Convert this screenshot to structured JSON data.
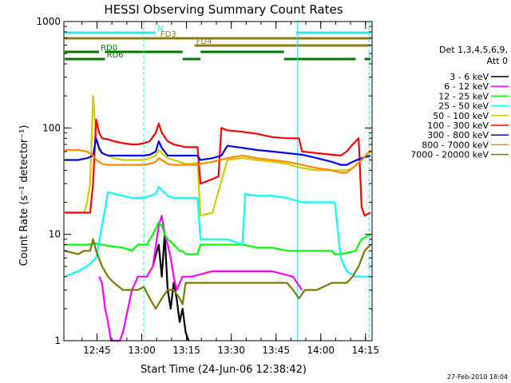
{
  "chart_data": {
    "type": "line",
    "title": "HESSI Observing Summary Count Rates",
    "xlabel": "Start Time (24-Jun-06 12:38:42)",
    "ylabel": "Count Rate (s⁻¹ detector⁻¹)",
    "y_scale": "log",
    "ylim": [
      1,
      1000
    ],
    "xlim_minutes": [
      -4.8,
      98.5
    ],
    "x_ticks": [
      "12:45",
      "13:00",
      "13:15",
      "13:30",
      "13:45",
      "14:00",
      "14:15"
    ],
    "y_ticks": [
      "1",
      "10",
      "100",
      "1000"
    ],
    "legend_header": [
      "Det 1,3,4,5,6,9,",
      "Att 0"
    ],
    "legend_placement": "right",
    "footer_date": "27-Feb-2010 18:04",
    "flag_bars": [
      {
        "label": "N",
        "color": "#33e5e5",
        "segments": [
          [
            -4.5,
            26
          ],
          [
            73,
            98
          ]
        ],
        "label_at": 26
      },
      {
        "label": "FD3",
        "color": "#8b7b15",
        "segments": [
          [
            -4.5,
            98
          ]
        ],
        "label_at": 27
      },
      {
        "label": "FD4",
        "color": "#8b7b15",
        "segments": [
          [
            39,
            98
          ]
        ],
        "label_at": 39
      },
      {
        "label": "RD0",
        "color": "#007700",
        "segments": [
          [
            -4.5,
            7
          ],
          [
            9,
            35
          ],
          [
            41,
            69
          ]
        ],
        "label_at": 7
      },
      {
        "label": "RD6",
        "color": "#007700",
        "segments": [
          [
            -4.5,
            9
          ],
          [
            35,
            41
          ],
          [
            69,
            93
          ],
          [
            96,
            98
          ]
        ],
        "label_at": 9
      }
    ],
    "vlines": [
      {
        "x": -4.8,
        "color": "#33e5e5",
        "style": "solid"
      },
      {
        "x": 22,
        "color": "#33e5e5",
        "style": "dashed"
      },
      {
        "x": 73.5,
        "color": "#33e5e5",
        "style": "solid"
      },
      {
        "x": 97.5,
        "color": "#33e5e5",
        "style": "dashed"
      }
    ],
    "series": [
      {
        "name": "3 - 6 keV",
        "color": "#000000",
        "x": [
          25,
          27,
          28,
          29,
          30,
          31,
          32,
          33,
          34,
          35,
          36,
          37
        ],
        "y": [
          5,
          8,
          4,
          10,
          3,
          2,
          3.5,
          2.5,
          1.5,
          2,
          1.2,
          1
        ]
      },
      {
        "name": "6 - 12 keV",
        "color": "#ff00ff",
        "x": [
          7,
          8,
          9,
          10,
          11,
          12,
          13,
          14,
          15,
          18,
          20,
          23,
          25,
          27,
          28,
          29,
          30,
          31,
          32,
          33,
          35,
          38,
          45,
          55,
          65,
          72,
          75
        ],
        "y": [
          4,
          3.5,
          2,
          1.5,
          1,
          1,
          1,
          1,
          1.2,
          3,
          4,
          4,
          5,
          12,
          15,
          10,
          8,
          6,
          4,
          3,
          4,
          4,
          4.5,
          4.5,
          4.5,
          4,
          3
        ]
      },
      {
        "name": "12 - 25 keV",
        "color": "#00ff00",
        "x": [
          -4.5,
          0,
          3,
          6,
          8,
          10,
          15,
          18,
          20,
          23,
          25,
          27,
          28,
          29,
          30,
          31,
          32,
          33,
          34,
          35,
          36,
          37,
          38,
          40,
          41,
          45,
          50,
          55,
          60,
          65,
          70,
          72,
          75,
          80,
          85,
          86,
          88,
          93,
          95,
          98
        ],
        "y": [
          8,
          8,
          8,
          8.2,
          8,
          7.8,
          7.5,
          7,
          8,
          8,
          10,
          13,
          12,
          10,
          9,
          8.5,
          8,
          7.5,
          7,
          7,
          6.5,
          6.5,
          6.5,
          6.5,
          8,
          8,
          8,
          8,
          7.5,
          7.5,
          7,
          7,
          7,
          7,
          7,
          6.5,
          6.5,
          7,
          9,
          10
        ]
      },
      {
        "name": "25 - 50 keV",
        "color": "#00ffff",
        "x": [
          -4.5,
          0,
          3,
          6,
          8,
          10,
          12,
          15,
          18,
          20,
          22,
          24,
          26,
          27,
          28,
          30,
          32,
          34,
          36,
          38,
          40,
          41,
          45,
          50,
          55,
          56,
          60,
          65,
          70,
          75,
          80,
          85,
          86,
          88,
          90,
          93,
          96,
          98
        ],
        "y": [
          4,
          4.5,
          5,
          6,
          12,
          25,
          24,
          23,
          22,
          22,
          22,
          23,
          24,
          28,
          26,
          23,
          22,
          22,
          22,
          22,
          22,
          9,
          9,
          9,
          8,
          24,
          23,
          23,
          22,
          20,
          20,
          20,
          20,
          6,
          4.5,
          4,
          4,
          4
        ]
      },
      {
        "name": "50 - 100 keV",
        "color": "#cccc00",
        "x": [
          -4.5,
          0,
          2,
          3,
          4,
          5,
          6,
          7,
          8,
          10,
          12,
          15,
          18,
          20,
          22,
          24,
          26,
          27,
          28,
          30,
          32,
          34,
          36,
          38,
          40,
          41,
          45,
          50,
          55,
          60,
          65,
          70,
          72,
          75,
          80,
          85,
          88,
          90,
          92,
          95,
          98
        ],
        "y": [
          16,
          16,
          16,
          20,
          30,
          200,
          80,
          62,
          58,
          55,
          52,
          50,
          50,
          50,
          50,
          52,
          55,
          62,
          58,
          52,
          50,
          48,
          46,
          46,
          47,
          15,
          16,
          50,
          52,
          50,
          48,
          46,
          44,
          42,
          40,
          40,
          40,
          40,
          42,
          50,
          60
        ]
      },
      {
        "name": "100 - 300 keV",
        "color": "#ff0000",
        "x": [
          -4.5,
          0,
          2,
          4,
          5,
          6,
          7,
          8,
          10,
          12,
          15,
          18,
          20,
          22,
          24,
          26,
          27,
          28,
          30,
          32,
          34,
          36,
          38,
          40,
          41,
          45,
          47,
          48,
          50,
          55,
          60,
          65,
          70,
          72,
          74,
          75,
          80,
          85,
          88,
          90,
          92,
          94,
          95,
          96,
          98
        ],
        "y": [
          16,
          16,
          16,
          16,
          30,
          120,
          90,
          80,
          78,
          75,
          72,
          70,
          70,
          72,
          75,
          90,
          110,
          90,
          75,
          70,
          68,
          66,
          66,
          66,
          30,
          33,
          35,
          100,
          95,
          92,
          88,
          82,
          80,
          80,
          80,
          60,
          58,
          56,
          55,
          60,
          70,
          80,
          18,
          15,
          16
        ]
      },
      {
        "name": "300 - 800 keV",
        "color": "#0000ff",
        "x": [
          -4.5,
          0,
          3,
          5,
          6,
          7,
          8,
          10,
          12,
          15,
          18,
          20,
          22,
          24,
          26,
          27,
          28,
          30,
          32,
          34,
          36,
          38,
          40,
          41,
          45,
          48,
          50,
          55,
          60,
          65,
          70,
          75,
          80,
          85,
          88,
          90,
          92,
          95,
          98
        ],
        "y": [
          50,
          50,
          52,
          55,
          80,
          65,
          58,
          55,
          55,
          55,
          55,
          55,
          55,
          56,
          60,
          75,
          65,
          55,
          55,
          55,
          55,
          55,
          55,
          50,
          52,
          55,
          68,
          65,
          62,
          60,
          58,
          56,
          52,
          48,
          45,
          45,
          48,
          52,
          55
        ]
      },
      {
        "name": "800 - 7000 keV",
        "color": "#ff8800",
        "x": [
          -4.5,
          0,
          3,
          5,
          6,
          7,
          8,
          10,
          12,
          15,
          18,
          20,
          22,
          24,
          26,
          27,
          28,
          30,
          32,
          34,
          36,
          38,
          40,
          41,
          45,
          50,
          55,
          60,
          65,
          70,
          75,
          80,
          85,
          88,
          90,
          92,
          95,
          98
        ],
        "y": [
          62,
          62,
          60,
          55,
          50,
          48,
          46,
          45,
          45,
          45,
          45,
          45,
          45,
          46,
          48,
          52,
          50,
          46,
          45,
          45,
          45,
          45,
          45,
          46,
          48,
          52,
          55,
          52,
          50,
          48,
          45,
          42,
          40,
          38,
          38,
          42,
          50,
          62
        ]
      },
      {
        "name": "7000 - 20000 keV",
        "color": "#7a7a00",
        "x": [
          -4.5,
          0,
          2,
          4,
          5,
          6,
          8,
          10,
          12,
          15,
          18,
          20,
          22,
          24,
          26,
          28,
          30,
          32,
          34,
          35,
          36,
          40,
          45,
          50,
          55,
          60,
          65,
          70,
          72,
          74,
          76,
          80,
          85,
          88,
          90,
          92,
          94,
          96,
          98
        ],
        "y": [
          7,
          6.5,
          7,
          7,
          9,
          7,
          5,
          4,
          3.5,
          3,
          3,
          3,
          3.2,
          2.5,
          2,
          2.5,
          3,
          3,
          2.5,
          2.2,
          3.5,
          3.5,
          3.5,
          3.5,
          3.5,
          3.5,
          3.5,
          3.5,
          3,
          2.5,
          3,
          3,
          3.5,
          3.5,
          3.5,
          4,
          5,
          7,
          8
        ]
      }
    ]
  }
}
